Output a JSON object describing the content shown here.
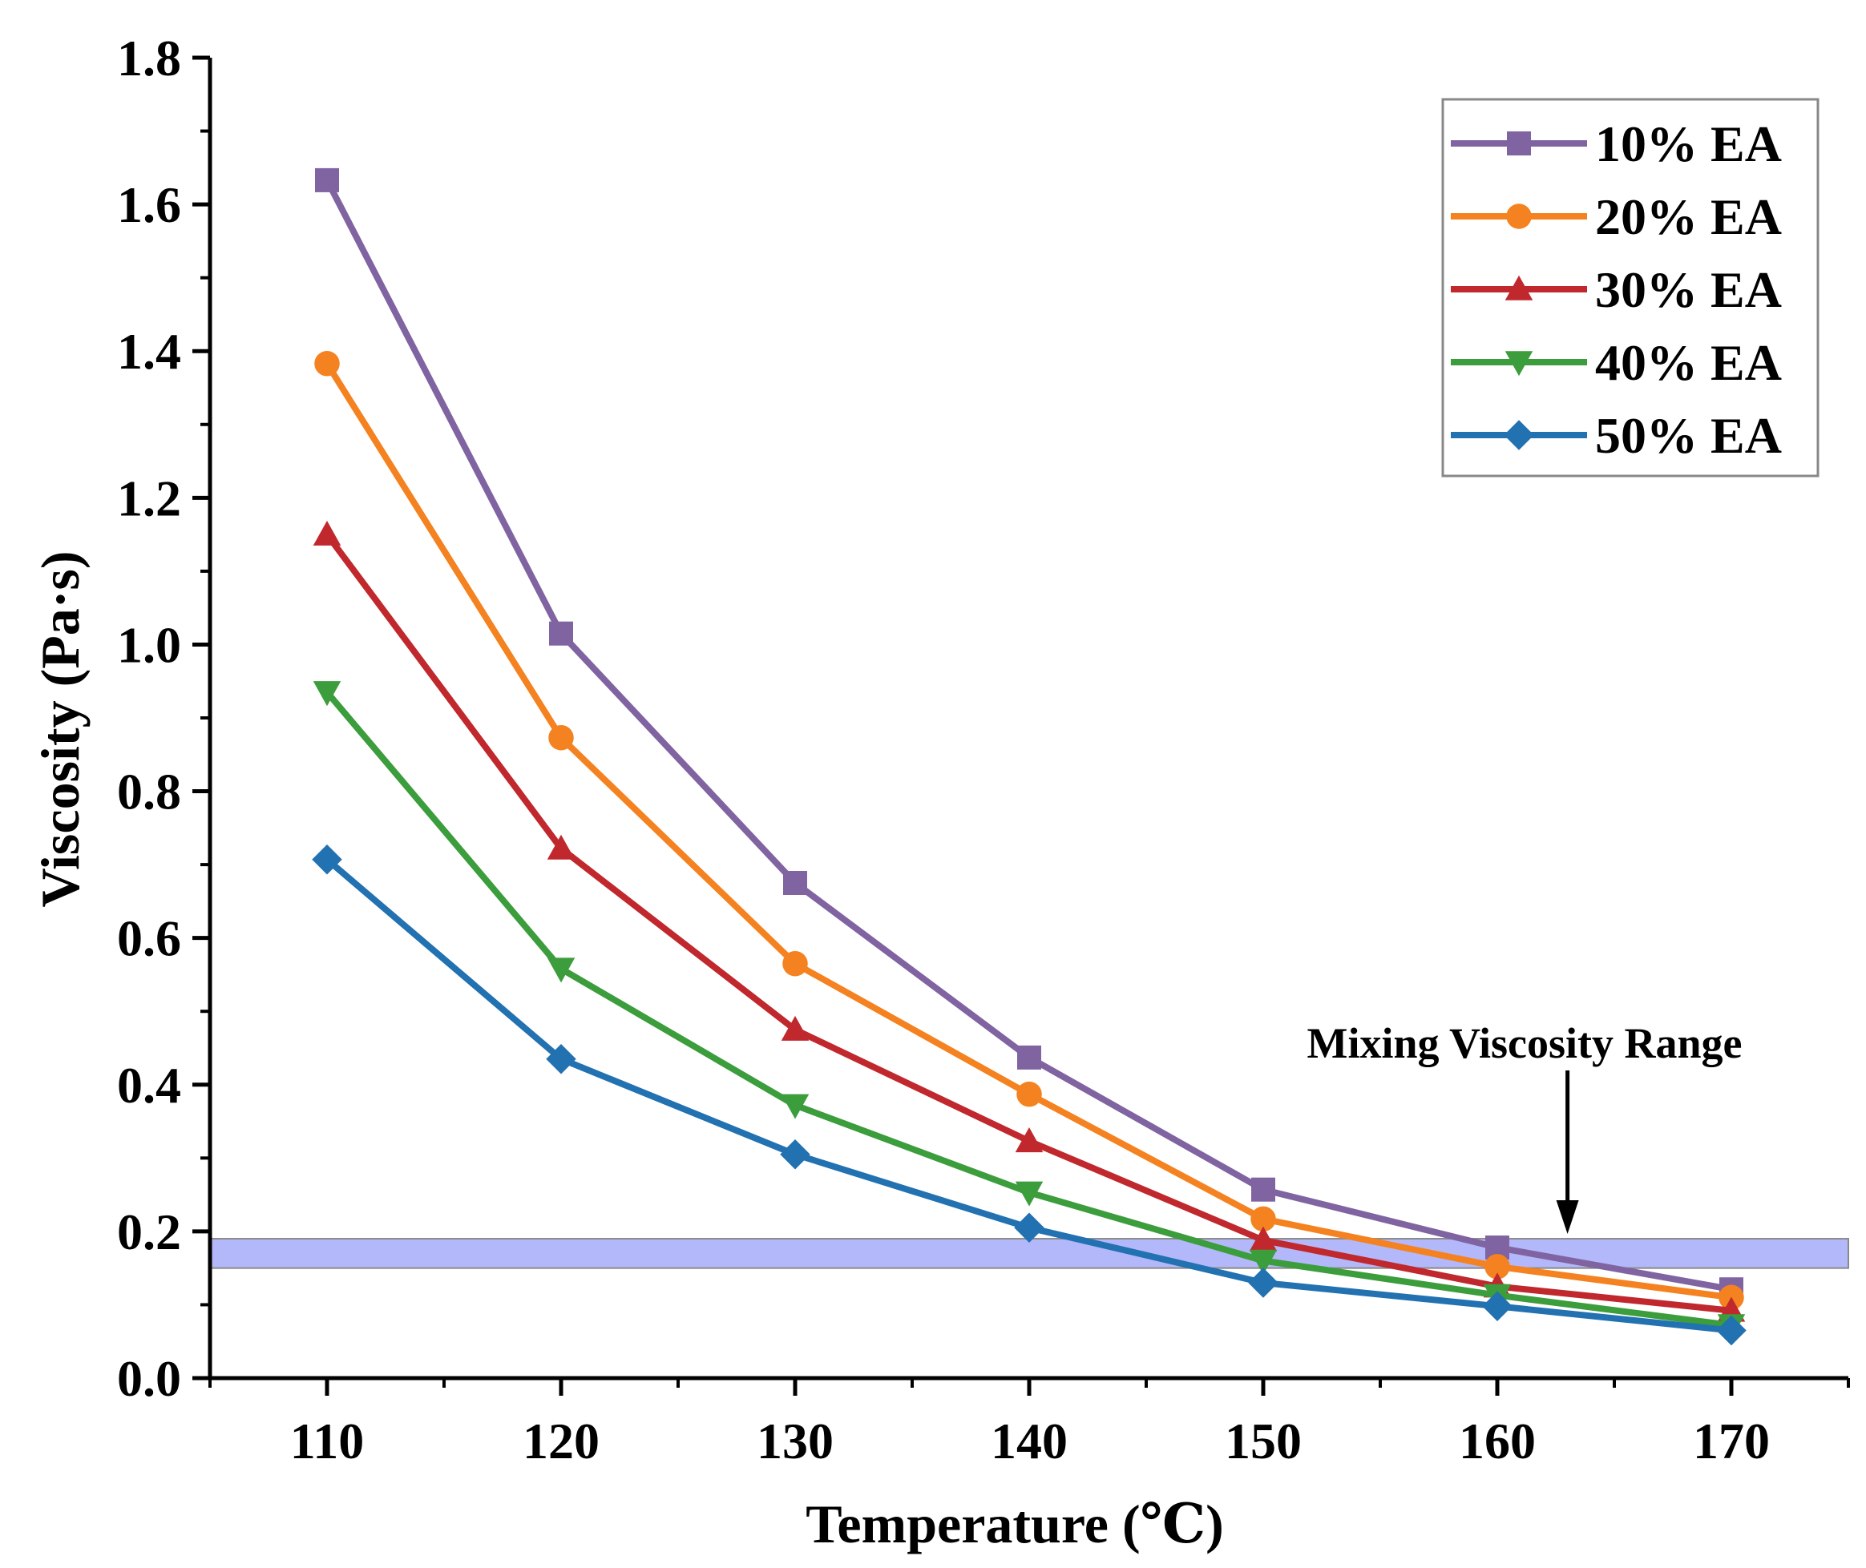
{
  "chart_data": {
    "type": "line",
    "title": "",
    "xlabel": "Temperature (℃)",
    "ylabel": "Viscosity (Pa·s)",
    "xlim": [
      105,
      175
    ],
    "ylim": [
      0.0,
      1.8
    ],
    "x": [
      110,
      120,
      130,
      140,
      150,
      160,
      170
    ],
    "x_ticks": [
      "110",
      "120",
      "130",
      "140",
      "150",
      "160",
      "170"
    ],
    "y_ticks": [
      "0.0",
      "0.2",
      "0.4",
      "0.6",
      "0.8",
      "1.0",
      "1.2",
      "1.4",
      "1.6",
      "1.8"
    ],
    "grid": false,
    "legend_position": "top-right",
    "series": [
      {
        "name": "10% EA",
        "color": "#8064A2",
        "marker": "square",
        "values": [
          1.633,
          1.015,
          0.675,
          0.437,
          0.257,
          0.178,
          0.121
        ]
      },
      {
        "name": "20% EA",
        "color": "#F58220",
        "marker": "circle",
        "values": [
          1.383,
          0.873,
          0.565,
          0.387,
          0.217,
          0.152,
          0.11
        ]
      },
      {
        "name": "30% EA",
        "color": "#C0282D",
        "marker": "triangle-up",
        "values": [
          1.15,
          0.722,
          0.475,
          0.323,
          0.188,
          0.125,
          0.092
        ]
      },
      {
        "name": "40% EA",
        "color": "#3C9D3C",
        "marker": "triangle-down",
        "values": [
          0.935,
          0.558,
          0.372,
          0.253,
          0.16,
          0.113,
          0.072
        ]
      },
      {
        "name": "50% EA",
        "color": "#2271B1",
        "marker": "diamond",
        "values": [
          0.707,
          0.435,
          0.305,
          0.205,
          0.13,
          0.098,
          0.065
        ]
      }
    ],
    "annotations": [
      {
        "text": "Mixing Viscosity Range",
        "points_to": [
          163,
          0.19
        ]
      }
    ],
    "band": {
      "y_range": [
        0.15,
        0.19
      ],
      "color": "#B3B8FA"
    }
  }
}
